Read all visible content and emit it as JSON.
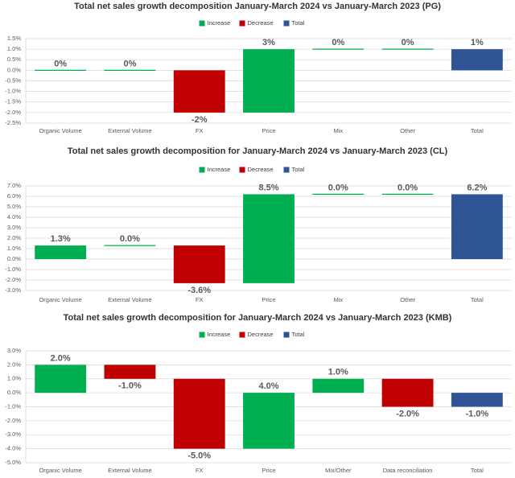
{
  "chart_data": [
    {
      "type": "waterfall",
      "title": "Total net sales growth decomposition January-March 2024 vs January-March 2023 (PG)",
      "series": [
        {
          "name": "Increase",
          "color": "#00b050"
        },
        {
          "name": "Decrease",
          "color": "#c00000"
        },
        {
          "name": "Total",
          "color": "#2f5597"
        }
      ],
      "categories": [
        "Organic Volume",
        "External Volume",
        "FX",
        "Price",
        "Mix",
        "Other",
        "Total"
      ],
      "values": [
        0,
        0,
        -2,
        3,
        0,
        0,
        1
      ],
      "value_labels": [
        "0%",
        "0%",
        "-2%",
        "3%",
        "0%",
        "0%",
        "1%"
      ],
      "bar_colors": [
        "#00b050",
        "#00b050",
        "#c00000",
        "#00b050",
        "#00b050",
        "#00b050",
        "#2f5597"
      ],
      "ylim": [
        -2.5,
        1.5
      ],
      "yticks": [
        {
          "value": -2.5,
          "label": "-2.5%"
        },
        {
          "value": -2,
          "label": "-2.0%"
        },
        {
          "value": -1.5,
          "label": "-1.5%"
        },
        {
          "value": -1,
          "label": "-1.0%"
        },
        {
          "value": -0.5,
          "label": "-0.5%"
        },
        {
          "value": 0,
          "label": "0.0%"
        },
        {
          "value": 0.5,
          "label": "0.5%"
        },
        {
          "value": 1,
          "label": "1.0%"
        },
        {
          "value": 1.5,
          "label": "1.5%"
        }
      ],
      "grid": true
    },
    {
      "type": "waterfall",
      "title": "Total net sales growth decomposition for January-March 2024 vs January-March 2023 (CL)",
      "series": [
        {
          "name": "Increase",
          "color": "#00b050"
        },
        {
          "name": "Decrease",
          "color": "#c00000"
        },
        {
          "name": "Total",
          "color": "#2f5597"
        }
      ],
      "categories": [
        "Organic Volume",
        "External Volume",
        "FX",
        "Price",
        "Mix",
        "Other",
        "Total"
      ],
      "values": [
        1.3,
        0.0,
        -3.6,
        8.5,
        0.0,
        0.0,
        6.2
      ],
      "value_labels": [
        "1.3%",
        "0.0%",
        "-3.6%",
        "8.5%",
        "0.0%",
        "0.0%",
        "6.2%"
      ],
      "bar_colors": [
        "#00b050",
        "#00b050",
        "#c00000",
        "#00b050",
        "#00b050",
        "#00b050",
        "#2f5597"
      ],
      "ylim": [
        -3,
        7
      ],
      "yticks": [
        {
          "value": -3,
          "label": "-3.0%"
        },
        {
          "value": -2,
          "label": "-2.0%"
        },
        {
          "value": -1,
          "label": "-1.0%"
        },
        {
          "value": 0,
          "label": "0.0%"
        },
        {
          "value": 1,
          "label": "1.0%"
        },
        {
          "value": 2,
          "label": "2.0%"
        },
        {
          "value": 3,
          "label": "3.0%"
        },
        {
          "value": 4,
          "label": "4.0%"
        },
        {
          "value": 5,
          "label": "5.0%"
        },
        {
          "value": 6,
          "label": "6.0%"
        },
        {
          "value": 7,
          "label": "7.0%"
        }
      ],
      "grid": true
    },
    {
      "type": "waterfall",
      "title": "Total net sales growth decomposition for January-March 2024 vs January-March 2023 (KMB)",
      "series": [
        {
          "name": "Increase",
          "color": "#00b050"
        },
        {
          "name": "Decrease",
          "color": "#c00000"
        },
        {
          "name": "Total",
          "color": "#2f5597"
        }
      ],
      "categories": [
        "Organic Volume",
        "External Volume",
        "FX",
        "Price",
        "Mix/Other",
        "Data reconciliation",
        "Total"
      ],
      "values": [
        2.0,
        -1.0,
        -5.0,
        4.0,
        1.0,
        -2.0,
        -1.0
      ],
      "value_labels": [
        "2.0%",
        "-1.0%",
        "-5.0%",
        "4.0%",
        "1.0%",
        "-2.0%",
        "-1.0%"
      ],
      "bar_colors": [
        "#00b050",
        "#c00000",
        "#c00000",
        "#00b050",
        "#00b050",
        "#c00000",
        "#2f5597"
      ],
      "ylim": [
        -5,
        3
      ],
      "yticks": [
        {
          "value": -5,
          "label": "-5.0%"
        },
        {
          "value": -4,
          "label": "-4.0%"
        },
        {
          "value": -3,
          "label": "-3.0%"
        },
        {
          "value": -2,
          "label": "-2.0%"
        },
        {
          "value": -1,
          "label": "-1.0%"
        },
        {
          "value": 0,
          "label": "0.0%"
        },
        {
          "value": 1,
          "label": "1.0%"
        },
        {
          "value": 2,
          "label": "2.0%"
        },
        {
          "value": 3,
          "label": "3.0%"
        }
      ],
      "grid": true
    }
  ]
}
